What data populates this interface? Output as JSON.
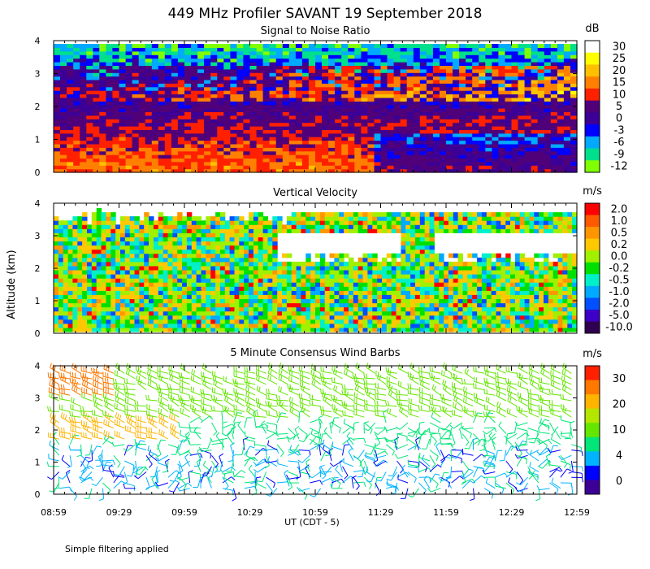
{
  "figure": {
    "title": "449 MHz Profiler SAVANT 19 September 2018",
    "ylabel": "Altitude (km)",
    "xlabel": "UT (CDT - 5)",
    "footer": "Simple filtering applied"
  },
  "chart_data": [
    {
      "type": "heatmap",
      "title": "Signal to Noise Ratio",
      "unit": "dB",
      "xlim": [
        "08:59",
        "12:59"
      ],
      "ylim": [
        0,
        4
      ],
      "yticks": [
        "0",
        "1",
        "2",
        "3",
        "4"
      ],
      "xticks": [
        "08:59",
        "09:29",
        "09:59",
        "10:29",
        "10:59",
        "11:29",
        "11:59",
        "12:29",
        "12:59"
      ],
      "colorbar": {
        "labels": [
          "30",
          "25",
          "20",
          "15",
          "10",
          "5",
          "0",
          "-3",
          "-6",
          "-9",
          "-12"
        ],
        "colors": [
          "#ffffff",
          "#ffff00",
          "#ffc000",
          "#ff8000",
          "#ff2000",
          "#500078",
          "#3c0096",
          "#0000ff",
          "#00aaff",
          "#00e08c",
          "#80ff00"
        ]
      },
      "grid": false
    },
    {
      "type": "heatmap",
      "title": "Vertical Velocity",
      "unit": "m/s",
      "xlim": [
        "08:59",
        "12:59"
      ],
      "ylim": [
        0,
        4
      ],
      "yticks": [
        "0",
        "1",
        "2",
        "3",
        "4"
      ],
      "xticks": [
        "08:59",
        "09:29",
        "09:59",
        "10:29",
        "10:59",
        "11:29",
        "11:59",
        "12:29",
        "12:59"
      ],
      "colorbar": {
        "labels": [
          "2.0",
          "1.0",
          "0.5",
          "0.2",
          "0.0",
          "-0.2",
          "-0.5",
          "-1.0",
          "-2.0",
          "-5.0",
          "-10.0"
        ],
        "colors": [
          "#ff0000",
          "#ff5a00",
          "#ff9600",
          "#ffc800",
          "#a0f000",
          "#00e000",
          "#00f0c8",
          "#00aaff",
          "#0050ff",
          "#3c00c8",
          "#300050"
        ]
      },
      "grid": false
    },
    {
      "type": "scatter",
      "title": "5 Minute Consensus Wind Barbs",
      "unit": "m/s",
      "xlim": [
        "08:59",
        "12:59"
      ],
      "ylim": [
        0,
        4
      ],
      "yticks": [
        "0",
        "1",
        "2",
        "3",
        "4"
      ],
      "xticks": [
        "08:59",
        "09:29",
        "09:59",
        "10:29",
        "10:59",
        "11:29",
        "11:59",
        "12:29",
        "12:59"
      ],
      "colorbar": {
        "labels": [
          "30",
          "20",
          "10",
          "4",
          "0"
        ],
        "colors": [
          "#ff2000",
          "#ff7800",
          "#ffb400",
          "#b4e600",
          "#64e600",
          "#00e678",
          "#00b4ff",
          "#0000ff",
          "#3c0096"
        ]
      },
      "grid": false
    }
  ]
}
